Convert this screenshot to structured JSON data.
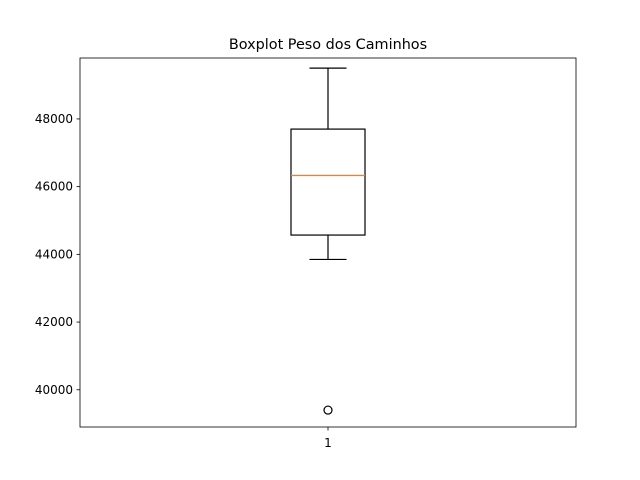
{
  "chart_data": {
    "type": "boxplot",
    "title": "Boxplot Peso dos Caminhos",
    "xlabel": "",
    "ylabel": "",
    "categories": [
      "1"
    ],
    "boxes": [
      {
        "category": "1",
        "whisker_low": 43850,
        "q1": 44570,
        "median": 46330,
        "q3": 47700,
        "whisker_high": 49500,
        "outliers": [
          39400
        ]
      }
    ],
    "yticks": [
      40000,
      42000,
      44000,
      46000,
      48000
    ],
    "ylim": [
      38900,
      49800
    ],
    "grid": false,
    "colors": {
      "box": "#000000",
      "median": "#ff7f0e",
      "outlier": "#000000"
    }
  }
}
